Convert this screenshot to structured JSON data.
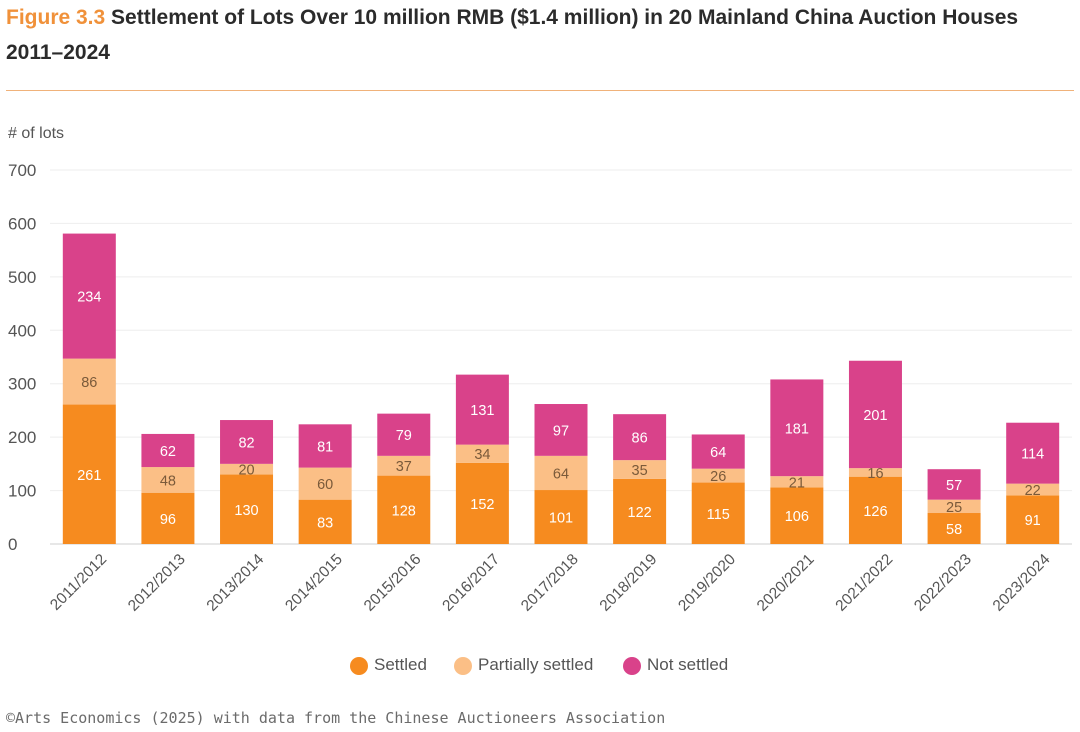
{
  "header": {
    "figure_label": "Figure 3.3",
    "title": "Settlement of Lots Over 10 million RMB ($1.4 million) in 20 Mainland China Auction Houses 2011–2024"
  },
  "footer": {
    "source": "©Arts Economics (2025) with data from the Chinese Auctioneers Association"
  },
  "colors": {
    "accent": "#f0913a",
    "settled": "#f68b1f",
    "partially_settled": "#fbbf86",
    "not_settled": "#d9428a"
  },
  "chart_data": {
    "type": "bar",
    "stacked": true,
    "ylabel": "# of lots",
    "xlabel": "",
    "ylim": [
      0,
      700
    ],
    "yticks": [
      0,
      100,
      200,
      300,
      400,
      500,
      600,
      700
    ],
    "grid": true,
    "legend_position": "bottom",
    "categories": [
      "2011/2012",
      "2012/2013",
      "2013/2014",
      "2014/2015",
      "2015/2016",
      "2016/2017",
      "2017/2018",
      "2018/2019",
      "2019/2020",
      "2020/2021",
      "2021/2022",
      "2022/2023",
      "2023/2024"
    ],
    "series": [
      {
        "name": "Settled",
        "color": "#f68b1f",
        "values": [
          261,
          96,
          130,
          83,
          128,
          152,
          101,
          122,
          115,
          106,
          126,
          58,
          91
        ]
      },
      {
        "name": "Partially settled",
        "color": "#fbbf86",
        "values": [
          86,
          48,
          20,
          60,
          37,
          34,
          64,
          35,
          26,
          21,
          16,
          25,
          22
        ]
      },
      {
        "name": "Not settled",
        "color": "#d9428a",
        "values": [
          234,
          62,
          82,
          81,
          79,
          131,
          97,
          86,
          64,
          181,
          201,
          57,
          114
        ]
      }
    ]
  }
}
